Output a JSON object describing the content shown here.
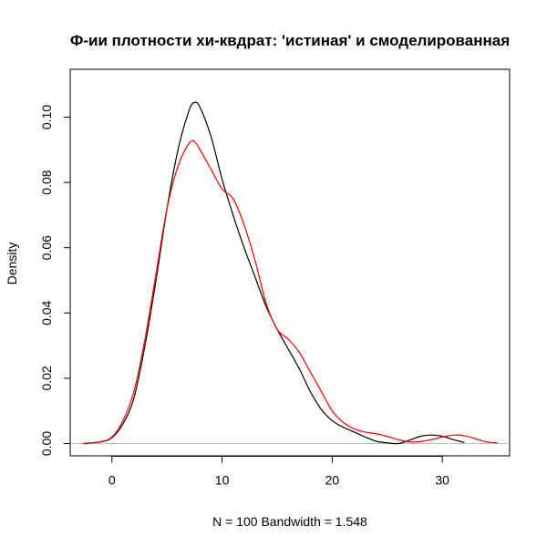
{
  "chart_data": {
    "type": "line",
    "title": "Ф-ии плотности хи-квдрат: 'истиная' и смоделированная",
    "xlabel": "N = 100   Bandwidth = 1.548",
    "ylabel": "Density",
    "xlim": [
      -5,
      35
    ],
    "ylim": [
      -0.005,
      0.11
    ],
    "x_ticks": [
      0,
      10,
      20,
      30
    ],
    "x_tick_labels": [
      "0",
      "10",
      "20",
      "30"
    ],
    "y_ticks": [
      0.0,
      0.02,
      0.04,
      0.06,
      0.08,
      0.1
    ],
    "y_tick_labels": [
      "0.00",
      "0.02",
      "0.04",
      "0.06",
      "0.08",
      "0.10"
    ],
    "baseline": 0,
    "grid": false,
    "series": [
      {
        "color": "#000000",
        "points": [
          [
            -2.6,
            0.0
          ],
          [
            -1,
            0.0005
          ],
          [
            0,
            0.0018
          ],
          [
            1,
            0.006
          ],
          [
            2,
            0.014
          ],
          [
            3,
            0.03
          ],
          [
            4,
            0.05
          ],
          [
            5,
            0.072
          ],
          [
            6,
            0.09
          ],
          [
            7,
            0.102
          ],
          [
            7.5,
            0.1045
          ],
          [
            8,
            0.103
          ],
          [
            9,
            0.094
          ],
          [
            10,
            0.081
          ],
          [
            11,
            0.07
          ],
          [
            12,
            0.06
          ],
          [
            13,
            0.051
          ],
          [
            14,
            0.042
          ],
          [
            15,
            0.035
          ],
          [
            16,
            0.029
          ],
          [
            17,
            0.023
          ],
          [
            18,
            0.016
          ],
          [
            19,
            0.0105
          ],
          [
            20,
            0.007
          ],
          [
            21,
            0.005
          ],
          [
            22,
            0.0035
          ],
          [
            23,
            0.002
          ],
          [
            24,
            0.0007
          ],
          [
            25,
            0.0002
          ],
          [
            26,
            0.0
          ],
          [
            27,
            0.001
          ],
          [
            28,
            0.0022
          ],
          [
            29,
            0.0026
          ],
          [
            30,
            0.0022
          ],
          [
            31,
            0.0012
          ],
          [
            32,
            0.0003
          ]
        ]
      },
      {
        "color": "#ff0000",
        "points": [
          [
            -2.6,
            0.0
          ],
          [
            -1,
            0.0006
          ],
          [
            0,
            0.002
          ],
          [
            1,
            0.007
          ],
          [
            2,
            0.016
          ],
          [
            3,
            0.032
          ],
          [
            4,
            0.052
          ],
          [
            5,
            0.072
          ],
          [
            6,
            0.085
          ],
          [
            7,
            0.092
          ],
          [
            7.5,
            0.0925
          ],
          [
            8,
            0.09
          ],
          [
            9,
            0.084
          ],
          [
            10,
            0.078
          ],
          [
            11,
            0.075
          ],
          [
            12,
            0.067
          ],
          [
            13,
            0.056
          ],
          [
            14,
            0.043
          ],
          [
            15,
            0.035
          ],
          [
            16,
            0.032
          ],
          [
            17,
            0.028
          ],
          [
            18,
            0.022
          ],
          [
            19,
            0.016
          ],
          [
            20,
            0.01
          ],
          [
            21,
            0.0065
          ],
          [
            22,
            0.0045
          ],
          [
            23,
            0.0035
          ],
          [
            24,
            0.003
          ],
          [
            25,
            0.0022
          ],
          [
            26,
            0.0012
          ],
          [
            27,
            0.0005
          ],
          [
            28,
            0.0006
          ],
          [
            29,
            0.0012
          ],
          [
            30,
            0.002
          ],
          [
            31,
            0.0026
          ],
          [
            32,
            0.0024
          ],
          [
            33,
            0.0015
          ],
          [
            34,
            0.0005
          ],
          [
            35,
            0.0002
          ]
        ]
      }
    ],
    "baseline_color": "#bebebe"
  }
}
